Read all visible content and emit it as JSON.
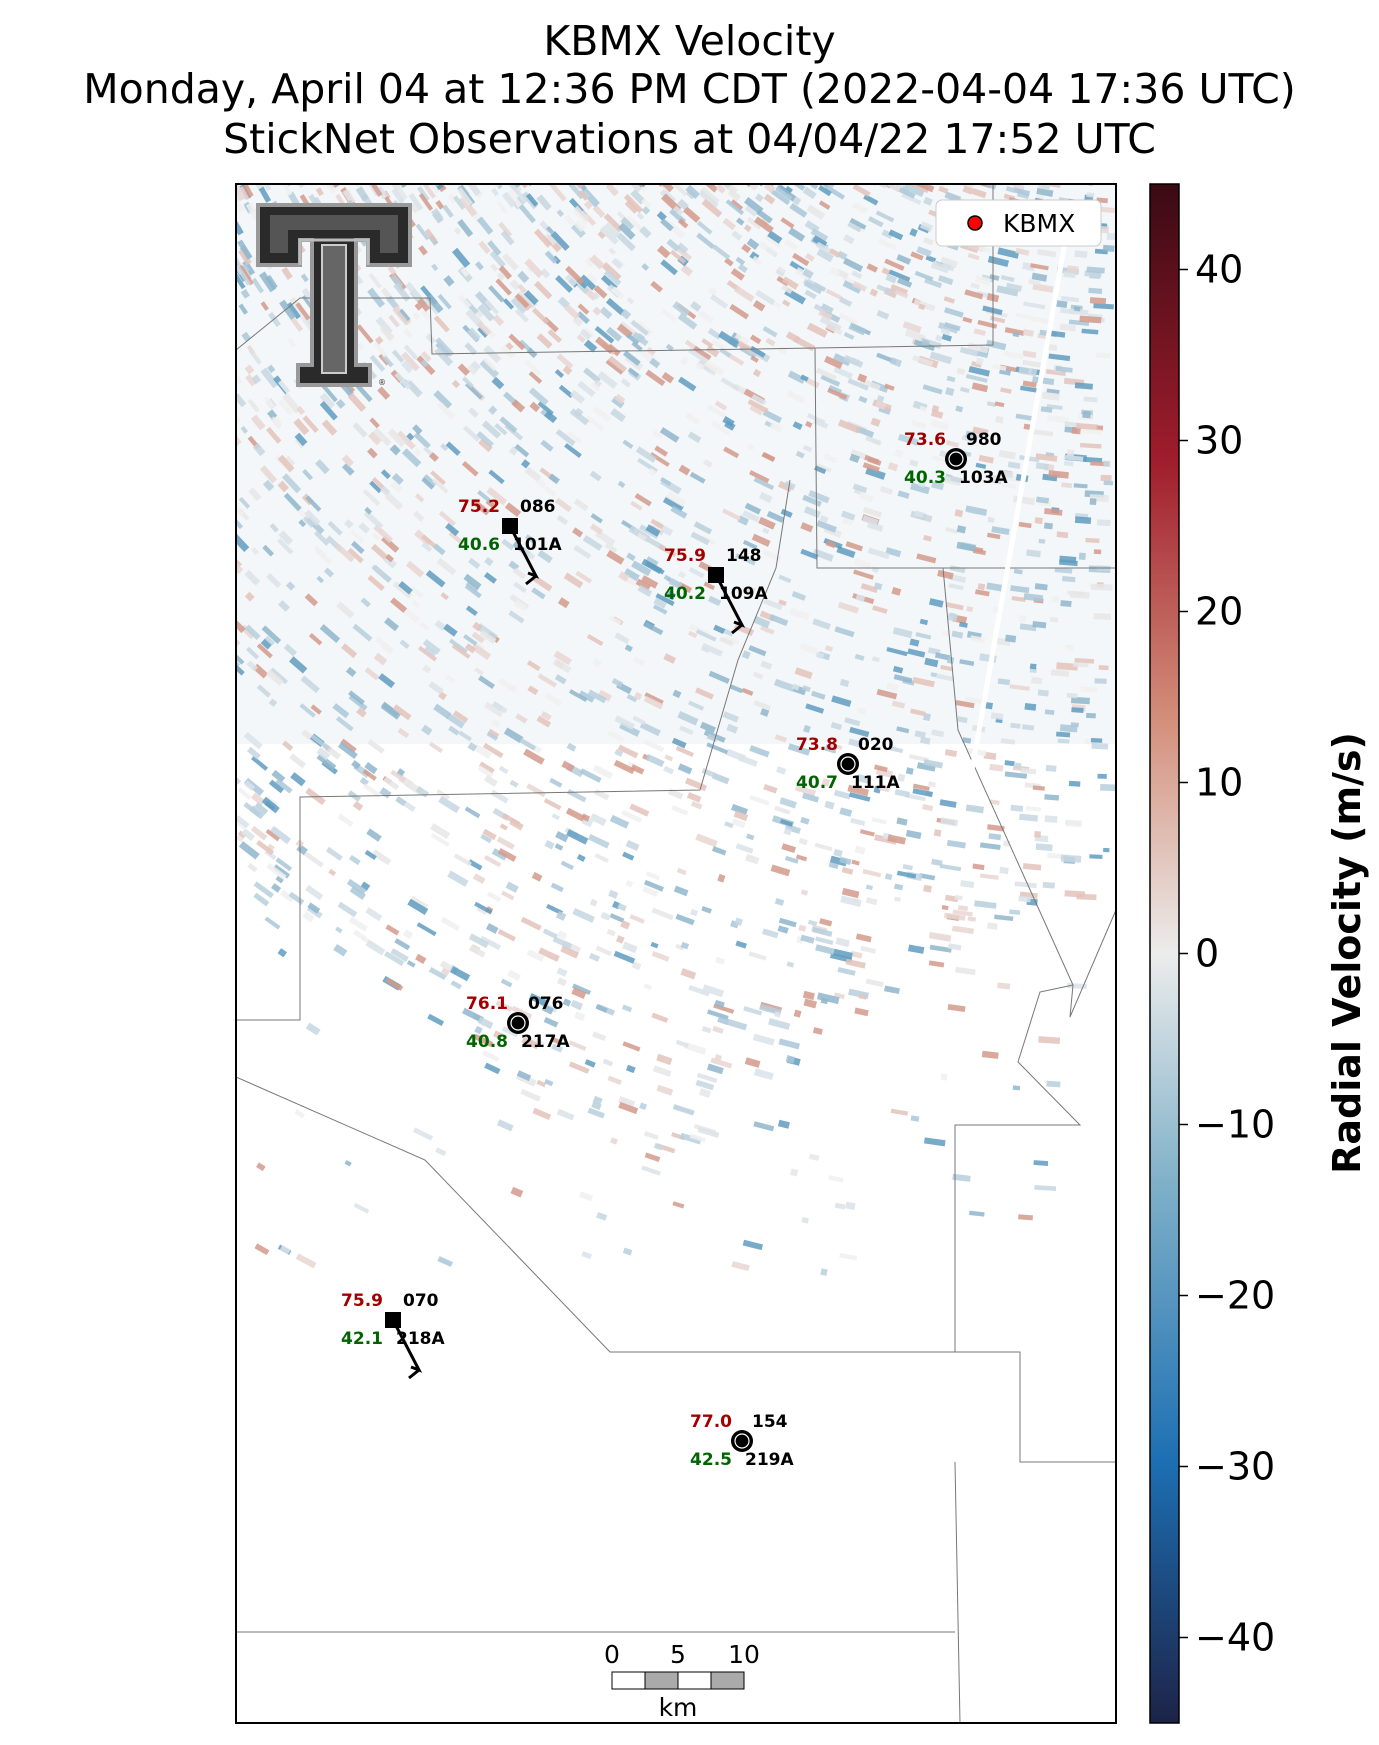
{
  "title": {
    "line1": "KBMX Velocity",
    "line2": "Monday, April 04 at 12:36 PM CDT (2022-04-04 17:36 UTC)",
    "line3": "StickNet Observations at 04/04/22 17:52 UTC"
  },
  "legend": {
    "label": "KBMX",
    "marker_color": "#ff0000",
    "placement": "top-right"
  },
  "colorbar": {
    "label": "Radial Velocity (m/s)",
    "ticks": [
      "40",
      "30",
      "20",
      "10",
      "0",
      "−10",
      "−20",
      "−30",
      "−40"
    ],
    "range": [
      -45,
      45
    ],
    "colors": {
      "top": "#3a0a14",
      "high": "#a01d2c",
      "mid_high": "#d4907c",
      "zero": "#ececec",
      "mid_low": "#7fb0c8",
      "low": "#1d6fb3",
      "bottom": "#1d2348"
    }
  },
  "scalebar": {
    "ticks": [
      "0",
      "5",
      "10"
    ],
    "unit": "km"
  },
  "logo": {
    "name": "texas-tech-double-t-logo"
  },
  "stations": [
    {
      "id": "101A",
      "temp": "75.2",
      "dew": "40.6",
      "pressure": "086",
      "marker": "square",
      "barb": true
    },
    {
      "id": "109A",
      "temp": "75.9",
      "dew": "40.2",
      "pressure": "148",
      "marker": "square",
      "barb": true
    },
    {
      "id": "103A",
      "temp": "73.6",
      "dew": "40.3",
      "pressure": "980",
      "marker": "calm-circle",
      "barb": false
    },
    {
      "id": "111A",
      "temp": "73.8",
      "dew": "40.7",
      "pressure": "020",
      "marker": "calm-circle",
      "barb": false
    },
    {
      "id": "217A",
      "temp": "76.1",
      "dew": "40.8",
      "pressure": "076",
      "marker": "calm-circle",
      "barb": false
    },
    {
      "id": "218A",
      "temp": "75.9",
      "dew": "42.1",
      "pressure": "070",
      "marker": "square",
      "barb": true
    },
    {
      "id": "219A",
      "temp": "77.0",
      "dew": "42.5",
      "pressure": "154",
      "marker": "calm-circle",
      "barb": false
    }
  ]
}
